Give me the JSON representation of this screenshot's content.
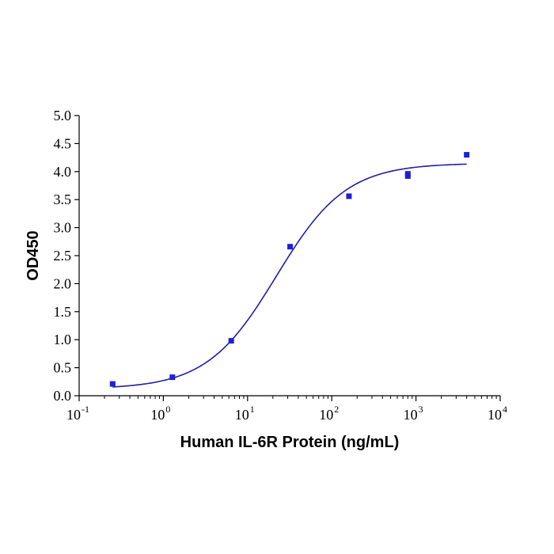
{
  "chart_data": {
    "type": "scatter",
    "title": "",
    "xlabel": "Human IL-6R Protein (ng/mL)",
    "ylabel": "OD450",
    "x_scale": "log10",
    "xlim": [
      0.1,
      10000
    ],
    "ylim": [
      0.0,
      5.0
    ],
    "x_tick_base": "10",
    "x_tick_exponents": [
      "-1",
      "0",
      "1",
      "2",
      "3",
      "4"
    ],
    "y_tick_labels": [
      "0.0",
      "0.5",
      "1.0",
      "1.5",
      "2.0",
      "2.5",
      "3.0",
      "3.5",
      "4.0",
      "4.5",
      "5.0"
    ],
    "grid": false,
    "legend": "none",
    "series": [
      {
        "kind": "points",
        "marker": "square",
        "color": "#1f1fd6",
        "x": [
          0.25,
          1.28,
          6.4,
          32,
          160,
          800,
          800,
          4000
        ],
        "y": [
          0.21,
          0.33,
          0.98,
          2.66,
          3.56,
          3.92,
          3.96,
          4.3
        ]
      },
      {
        "kind": "fitted-curve",
        "model": "4PL",
        "color": "#1f1fa8",
        "x_range": [
          0.25,
          4000
        ],
        "bottom": 0.12,
        "top": 4.15,
        "ec50": 22,
        "hill": 1.05
      }
    ]
  }
}
